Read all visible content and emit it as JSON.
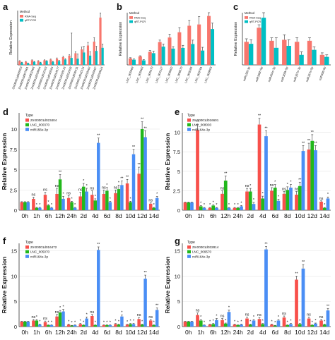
{
  "figure": {
    "background": "#ffffff"
  },
  "chart_data": [
    {
      "panel": "a",
      "type": "bar",
      "legend": {
        "title": "Method",
        "placement": "top-left",
        "entries": [
          "RNA-Seq",
          "qRT-PCR"
        ]
      },
      "colors": [
        "#f8766d",
        "#00bfc4"
      ],
      "ylabel": "Relative Expression",
      "ylim": [
        0,
        7
      ],
      "yticks": [],
      "categories": [
        "Zm00001d000053",
        "Zm00001d007061",
        "Zm00001d001063",
        "Zm00001d019894",
        "Zm00001d011203",
        "Zm00001d016584",
        "Zm00001d014877",
        "Zm00001d018213",
        "Zm00001d021058",
        "Zm00001d030411",
        "Zm00001d011314",
        "Zm00001d018462",
        "Zm00001d045067",
        "Zm00001d018824"
      ],
      "series": [
        {
          "name": "RNA-Seq",
          "values": [
            0.5,
            0.4,
            0.6,
            0.5,
            0.6,
            0.7,
            0.8,
            1.0,
            1.2,
            1.5,
            2.0,
            2.5,
            3.0,
            6.1
          ],
          "errors": [
            0.05,
            0.05,
            0.05,
            0.05,
            0.05,
            0.05,
            0.1,
            0.1,
            0.1,
            0.2,
            0.3,
            0.4,
            0.5,
            0.6
          ]
        },
        {
          "name": "qRT-PCR",
          "values": [
            0.3,
            0.2,
            0.4,
            0.3,
            0.5,
            0.4,
            0.5,
            0.7,
            0.9,
            0.8,
            1.6,
            1.2,
            1.8,
            2.2
          ],
          "errors": [
            0.05,
            0.05,
            0.05,
            0.05,
            0.05,
            0.05,
            0.1,
            0.1,
            3.2,
            0.6,
            0.8,
            0.5,
            0.6,
            0.5
          ]
        }
      ]
    },
    {
      "panel": "b",
      "type": "bar",
      "legend": {
        "title": "Method",
        "placement": "top-left",
        "entries": [
          "RNA-Seq",
          "qRT-PCR"
        ]
      },
      "colors": [
        "#f8766d",
        "#00bfc4"
      ],
      "ylabel": "Relative Expression",
      "ylim": [
        0,
        8
      ],
      "yticks": [],
      "categories": [
        "LNC_005069",
        "LNC_005063",
        "LNC_000370",
        "LNC_002227",
        "LNC_009802",
        "LNC_006870",
        "LNC_009285",
        "LNC_009781",
        "LNC_009803"
      ],
      "series": [
        {
          "name": "RNA-Seq",
          "values": [
            1.0,
            1.3,
            2.0,
            3.5,
            4.2,
            5.0,
            6.0,
            6.2,
            7.5
          ],
          "errors": [
            0.1,
            0.1,
            0.2,
            0.3,
            0.5,
            0.7,
            0.8,
            1.2,
            1.4
          ]
        },
        {
          "name": "qRT-PCR",
          "values": [
            0.8,
            0.7,
            1.8,
            2.8,
            2.5,
            2.6,
            3.2,
            2.2,
            5.5
          ],
          "errors": [
            0.1,
            0.1,
            0.3,
            0.4,
            0.3,
            0.4,
            0.6,
            0.5,
            0.9
          ]
        }
      ]
    },
    {
      "panel": "c",
      "type": "bar",
      "legend": {
        "title": "Method",
        "placement": "top-left",
        "entries": [
          "RNA-Seq",
          "qRT-PCR"
        ]
      },
      "colors": [
        "#f8766d",
        "#00bfc4"
      ],
      "ylabel": "Relative Expression",
      "ylim": [
        0,
        5.2
      ],
      "yticks": [],
      "categories": [
        "miR156f-3p",
        "miR166h-5p",
        "miR164e-3p",
        "miR169k-5p",
        "miR167e-3p",
        "miR167e-5p",
        "miR396-5p"
      ],
      "series": [
        {
          "name": "RNA-Seq",
          "values": [
            2.3,
            3.7,
            2.4,
            2.5,
            2.3,
            2.4,
            1.0
          ],
          "errors": [
            0.3,
            0.3,
            0.3,
            0.5,
            0.4,
            0.3,
            0.2
          ]
        },
        {
          "name": "qRT-PCR",
          "values": [
            2.1,
            4.7,
            1.7,
            1.9,
            1.0,
            1.5,
            0.8
          ],
          "errors": [
            0.4,
            0.5,
            1.0,
            0.6,
            0.3,
            0.3,
            0.2
          ]
        }
      ]
    },
    {
      "panel": "d",
      "type": "bar",
      "legend": {
        "title": "Type",
        "placement": "top-left",
        "entries": [
          "Zm00001d023404",
          "LNC_000370",
          "miR156e-3p"
        ]
      },
      "colors": [
        "#f8504b",
        "#22b81c",
        "#4a8ef5"
      ],
      "xlabel": "",
      "ylabel": "Relative Expression",
      "ylim": [
        0,
        12
      ],
      "yticks": [
        0,
        2.5,
        5,
        7.5,
        10
      ],
      "categories": [
        "0h",
        "1h",
        "6h",
        "12h",
        "24h",
        "2d",
        "4d",
        "6d",
        "8d",
        "10d",
        "12d",
        "14d"
      ],
      "series": [
        {
          "name": "Zm00001d023404",
          "values": [
            1,
            1.4,
            1.9,
            2.0,
            1.5,
            1.7,
            1.9,
            2.0,
            2.1,
            3.3,
            4.5,
            0.8
          ],
          "errors": [
            0.05,
            0.2,
            0.3,
            0.7,
            0.3,
            0.5,
            0.5,
            0.5,
            0.4,
            0.5,
            0.8,
            0.1
          ]
        },
        {
          "name": "LNC_000370",
          "values": [
            1,
            0.3,
            0.6,
            3.8,
            1.0,
            2.9,
            1.2,
            2.4,
            2.6,
            1.0,
            10.0,
            0.3
          ],
          "errors": [
            0.05,
            0.05,
            0.1,
            0.6,
            0.1,
            0.4,
            0.2,
            0.4,
            0.5,
            0.1,
            0.9,
            0.05
          ]
        },
        {
          "name": "miR156e-3p",
          "values": [
            1,
            0.3,
            0.3,
            1.4,
            0.3,
            2.3,
            8.3,
            1.0,
            3.1,
            6.9,
            9.0,
            1.5
          ],
          "errors": [
            0.05,
            0.05,
            0.05,
            0.3,
            0.05,
            0.4,
            0.6,
            0.1,
            0.5,
            0.6,
            0.8,
            0.2
          ]
        }
      ],
      "annotations": [
        "ns",
        "*",
        "**"
      ]
    },
    {
      "panel": "e",
      "type": "bar",
      "legend": {
        "title": "Type",
        "placement": "top-left",
        "entries": [
          "Zm00001d016601",
          "LNC_008003",
          "miR164e-3p"
        ]
      },
      "colors": [
        "#f8504b",
        "#22b81c",
        "#4a8ef5"
      ],
      "xlabel": "",
      "ylabel": "Relative Expression",
      "ylim": [
        0,
        12.5
      ],
      "yticks": [
        0.0,
        2.5,
        5.0,
        7.5,
        10.0
      ],
      "categories": [
        "0h",
        "1h",
        "6h",
        "12h",
        "24h",
        "2d",
        "4d",
        "6d",
        "8d",
        "10d",
        "12d",
        "14d"
      ],
      "series": [
        {
          "name": "Zm00001d016601",
          "values": [
            1,
            10.3,
            0.3,
            2.1,
            0.3,
            2.4,
            11.0,
            2.5,
            2.1,
            2.0,
            7.8,
            1.1
          ],
          "errors": [
            0.05,
            0.7,
            0.05,
            0.4,
            0.05,
            0.4,
            0.8,
            0.4,
            0.3,
            0.4,
            0.8,
            0.1
          ]
        },
        {
          "name": "LNC_008003",
          "values": [
            1,
            0.5,
            0.6,
            3.8,
            0.3,
            2.4,
            1.5,
            2.9,
            2.6,
            3.1,
            8.9,
            0.3
          ],
          "errors": [
            0.05,
            0.1,
            0.1,
            0.6,
            0.05,
            0.4,
            0.3,
            0.4,
            0.4,
            0.5,
            0.8,
            0.05
          ]
        },
        {
          "name": "miR164e-3p",
          "values": [
            1,
            0.3,
            0.3,
            0.3,
            0.5,
            0.8,
            9.5,
            1.2,
            2.9,
            7.6,
            7.7,
            1.5
          ],
          "errors": [
            0.05,
            0.05,
            0.05,
            0.05,
            0.1,
            0.2,
            0.7,
            0.2,
            0.4,
            0.7,
            0.6,
            0.2
          ]
        }
      ],
      "annotations": [
        "ns",
        "*",
        "**"
      ]
    },
    {
      "panel": "f",
      "type": "bar",
      "legend": {
        "title": "Type",
        "placement": "top-left",
        "entries": [
          "Zm00001d016472",
          "LNC_005070",
          "miR164e-3p"
        ]
      },
      "colors": [
        "#f8504b",
        "#22b81c",
        "#4a8ef5"
      ],
      "xlabel": "",
      "ylabel": "Relative Expression",
      "ylim": [
        0,
        16.5
      ],
      "yticks": [
        0,
        5,
        10,
        15
      ],
      "categories": [
        "0h",
        "1h",
        "6h",
        "12h",
        "24h",
        "2d",
        "4d",
        "6d",
        "8d",
        "10d",
        "12d",
        "14d"
      ],
      "series": [
        {
          "name": "Zm00001d016472",
          "values": [
            1,
            1.2,
            0.9,
            2.0,
            0.4,
            0.5,
            2.1,
            0.3,
            0.5,
            0.4,
            1.5,
            1.2
          ],
          "errors": [
            0.05,
            0.2,
            0.2,
            0.4,
            0.1,
            0.1,
            0.3,
            0.05,
            0.1,
            0.05,
            0.3,
            0.2
          ]
        },
        {
          "name": "LNC_005070",
          "values": [
            1,
            1.2,
            0.3,
            2.8,
            0.2,
            0.3,
            0.3,
            0.3,
            0.4,
            0.5,
            0.4,
            0.3
          ],
          "errors": [
            0.05,
            0.2,
            0.05,
            0.4,
            0.05,
            0.05,
            0.05,
            0.05,
            0.1,
            0.1,
            0.1,
            0.05
          ]
        },
        {
          "name": "miR164e-3p",
          "values": [
            1,
            0.4,
            0.3,
            3.0,
            0.3,
            1.6,
            15.2,
            0.3,
            2.0,
            0.5,
            9.5,
            3.3
          ],
          "errors": [
            0.05,
            0.1,
            0.05,
            0.4,
            0.05,
            0.3,
            0.6,
            0.05,
            0.3,
            0.1,
            0.7,
            0.4
          ]
        }
      ],
      "annotations": [
        "ns",
        "*",
        "**"
      ]
    },
    {
      "panel": "g",
      "type": "bar",
      "legend": {
        "title": "Type",
        "placement": "top-left",
        "entries": [
          "Zm00001d032814",
          "LNC_009570",
          "miR164e-3p"
        ]
      },
      "colors": [
        "#f8504b",
        "#22b81c",
        "#4a8ef5"
      ],
      "xlabel": "",
      "ylabel": "Relative Expression",
      "ylim": [
        0,
        16.5
      ],
      "yticks": [
        0,
        5,
        10,
        15
      ],
      "categories": [
        "0h",
        "1h",
        "6h",
        "12h",
        "24h",
        "2d",
        "4d",
        "6d",
        "8d",
        "10d",
        "12d",
        "14d"
      ],
      "series": [
        {
          "name": "Zm00001d032814",
          "values": [
            1,
            2.3,
            0.4,
            1.3,
            0.4,
            1.6,
            1.5,
            0.4,
            1.8,
            9.3,
            1.6,
            1.2
          ],
          "errors": [
            0.05,
            0.4,
            0.1,
            0.3,
            0.1,
            0.3,
            0.3,
            0.1,
            0.3,
            0.7,
            0.3,
            0.2
          ]
        },
        {
          "name": "LNC_009570",
          "values": [
            1,
            1.2,
            0.5,
            0.6,
            0.3,
            0.4,
            0.5,
            0.2,
            0.3,
            0.5,
            0.3,
            0.4
          ],
          "errors": [
            0.05,
            0.2,
            0.1,
            0.1,
            0.05,
            0.1,
            0.1,
            0.05,
            0.05,
            0.1,
            0.05,
            0.1
          ]
        },
        {
          "name": "miR164e-3p",
          "values": [
            1,
            0.3,
            1.3,
            2.9,
            0.4,
            1.2,
            15.3,
            1.2,
            0.5,
            11.5,
            0.6,
            3.2
          ],
          "errors": [
            0.05,
            0.05,
            0.3,
            0.4,
            0.1,
            0.2,
            0.6,
            0.2,
            0.1,
            0.8,
            0.1,
            0.4
          ]
        }
      ],
      "annotations": [
        "ns",
        "*",
        "**"
      ]
    }
  ]
}
